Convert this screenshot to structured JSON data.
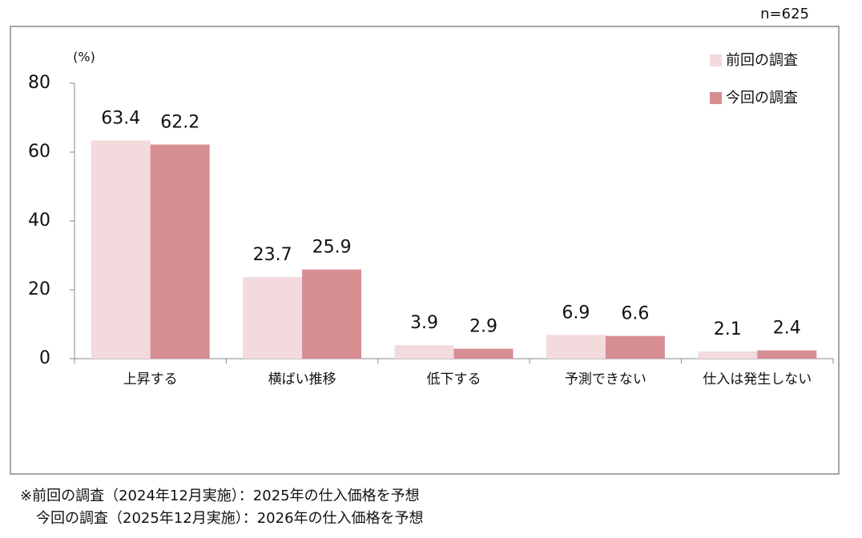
{
  "chart_data": {
    "type": "bar",
    "sample_size": "n=625",
    "y_unit": "(%)",
    "categories": [
      "上昇する",
      "横ばい推移",
      "低下する",
      "予測できない",
      "仕入は発生しない"
    ],
    "series": [
      {
        "name": "前回の調査",
        "color": "#f3dadd",
        "values": [
          63.4,
          23.7,
          3.9,
          6.9,
          2.1
        ]
      },
      {
        "name": "今回の調査",
        "color": "#d68e93",
        "values": [
          62.2,
          25.9,
          2.9,
          6.6,
          2.4
        ]
      }
    ],
    "ylim": [
      0,
      80
    ],
    "yticks": [
      0,
      20,
      40,
      60,
      80
    ],
    "grid": false,
    "legend": "top-right",
    "notes": [
      "※前回の調査（2024年12月実施）：2025年の仕入価格を予想",
      "今回の調査（2025年12月実施）：2026年の仕入価格を予想"
    ]
  }
}
